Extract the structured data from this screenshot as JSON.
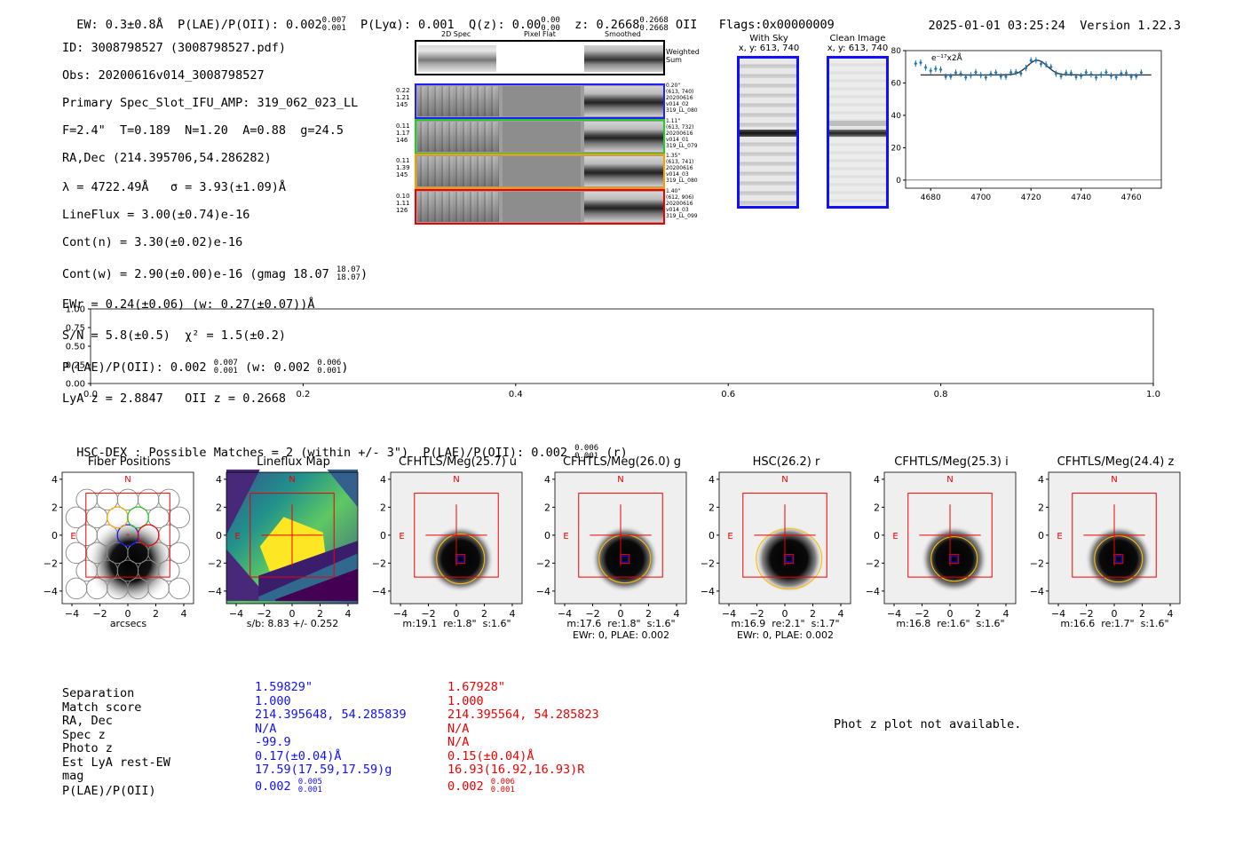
{
  "header": {
    "ew": "EW: 0.3±0.8Å",
    "plae_label": "P(LAE)/P(OII): 0.002",
    "plae_hi": "0.007",
    "plae_lo": "0.001",
    "plya": "P(Lyα): 0.001",
    "qz_label": "Q(z): 0.00",
    "qz_hi": "0.00",
    "qz_lo": "0.00",
    "z_label": "z: 0.2668",
    "z_hi": "0.2668",
    "z_lo": "0.2668",
    "z_line": "OII",
    "flags": "Flags:0x00000009",
    "timestamp": "2025-01-01 03:25:24",
    "version": "Version 1.22.3"
  },
  "info": {
    "id": "ID: 3008798527 (3008798527.pdf)",
    "obs": "Obs: 20200616v014_3008798527",
    "primary": "Primary Spec_Slot_IFU_AMP: 319_062_023_LL",
    "fiber": "F=2.4\"  T=0.189  N=1.20  A=0.88  g=24.5",
    "radec": "RA,Dec (214.395706,54.286282)",
    "lambda": "λ = 4722.49Å   σ = 3.93(±1.09)Å",
    "lineflux": "LineFlux = 3.00(±0.74)e-16",
    "contn": "Cont(n) = 3.30(±0.02)e-16",
    "contw": "Cont(w) = 2.90(±0.00)e-16 (gmag 18.07",
    "contw_hi": "18.07",
    "contw_lo": "18.07",
    "contw_end": ")",
    "ewr": "EWr = 0.24(±0.06) (w: 0.27(±0.07))Å",
    "sn": "S/N = 5.8(±0.5)  χ² = 1.5(±0.2)",
    "plae": "P(LAE)/P(OII): 0.002",
    "plae_hi": "0.007",
    "plae_lo": "0.001",
    "plae_w": "(w: 0.002",
    "plae_w_hi": "0.006",
    "plae_w_lo": "0.001",
    "plae_w_end": ")",
    "lyaz": "LyA z = 2.8847   OII z = 0.2668"
  },
  "cutouts": {
    "col1": "2D Spec",
    "col2": "Pixel Flat",
    "col3": "Smoothed",
    "weighted": "Weighted\nSum",
    "rows": [
      {
        "nums": "0.22\n1.21\n145",
        "meta": "0.20\"\n(613, 740)\n20200616\nv014_02\n319_LL_080",
        "color": "#2020ff"
      },
      {
        "nums": "0.11\n1.17\n146",
        "meta": "1.11\"\n(613, 732)\n20200616\nv014_01\n319_LL_079",
        "color": "#22cc22"
      },
      {
        "nums": "0.11\n1.39\n145",
        "meta": "1.35\"\n(613, 741)\n20200616\nv014_03\n319_LL_080",
        "color": "#ff9900"
      },
      {
        "nums": "0.10\n1.11\n126",
        "meta": "1.40\"\n(612, 906)\n20200616\nv014_03\n319_LL_099",
        "color": "#ee0000"
      }
    ],
    "with_sky": "With Sky",
    "with_sky_xy": "x, y: 613, 740",
    "clean": "Clean Image",
    "clean_xy": "x, y: 613, 740"
  },
  "spectrum": {
    "ylabel": "e⁻¹⁷x2Å",
    "yticks": [
      "80",
      "60",
      "40",
      "20",
      "0"
    ],
    "xticks": [
      "4680",
      "4700",
      "4720",
      "4740",
      "4760"
    ]
  },
  "empty_axes": {
    "yticks": [
      "1.00",
      "0.75",
      "0.50",
      "0.25",
      "0.00"
    ],
    "xticks": [
      "0.0",
      "0.2",
      "0.4",
      "0.6",
      "0.8",
      "1.0"
    ]
  },
  "hsc": {
    "title": "HSC-DEX : Possible Matches = 2 (within +/- 3\")  P(LAE)/P(OII): 0.002",
    "hi": "0.006",
    "lo": "0.001",
    "end": "(r)"
  },
  "panels": [
    {
      "title": "Fiber Positions",
      "caption1": "arcsecs",
      "caption2": ""
    },
    {
      "title": "Lineflux Map",
      "caption1": "s/b: 8.83 +/- 0.252",
      "caption2": ""
    },
    {
      "title": "CFHTLS/Meg(25.7) u",
      "caption1": "m:19.1  re:1.8\"  s:1.6\"",
      "caption2": ""
    },
    {
      "title": "CFHTLS/Meg(26.0) g",
      "caption1": "m:17.6  re:1.8\"  s:1.6\"",
      "caption2": "EWr: 0, PLAE: 0.002"
    },
    {
      "title": "HSC(26.2) r",
      "caption1": "m:16.9  re:2.1\"  s:1.7\"",
      "caption2": "EWr: 0, PLAE: 0.002"
    },
    {
      "title": "CFHTLS/Meg(25.3) i",
      "caption1": "m:16.8  re:1.6\"  s:1.6\"",
      "caption2": ""
    },
    {
      "title": "CFHTLS/Meg(24.4) z",
      "caption1": "m:16.6  re:1.7\"  s:1.6\"",
      "caption2": ""
    }
  ],
  "panel_axis": {
    "yticks": [
      "4",
      "2",
      "0",
      "−2",
      "−4"
    ],
    "xticks": [
      "−4",
      "−2",
      "0",
      "2",
      "4"
    ],
    "north": "N",
    "east": "E"
  },
  "matches": {
    "labels": [
      "Separation",
      "Match score",
      "RA, Dec",
      "Spec z",
      "Photo z",
      "Est LyA rest-EW",
      "mag",
      "P(LAE)/P(OII)"
    ],
    "m1": [
      "1.59829\"",
      "1.000",
      "214.395648, 54.285839",
      "N/A",
      "-99.9",
      "0.17(±0.04)Å",
      "17.59(17.59,17.59)g",
      "0.002"
    ],
    "m1_hi": "0.005",
    "m1_lo": "0.001",
    "m2": [
      "1.67928\"",
      "1.000",
      "214.395564, 54.285823",
      "N/A",
      "N/A",
      "0.15(±0.04)Å",
      "16.93(16.92,16.93)R",
      "0.002"
    ],
    "m2_hi": "0.006",
    "m2_lo": "0.001",
    "photz_msg": "Phot z plot not available."
  },
  "colors": {
    "blue": "#1010ff",
    "red": "#ee0000",
    "orange": "#ffaa00",
    "green": "#22cc22",
    "marker": "#1f77b4"
  }
}
